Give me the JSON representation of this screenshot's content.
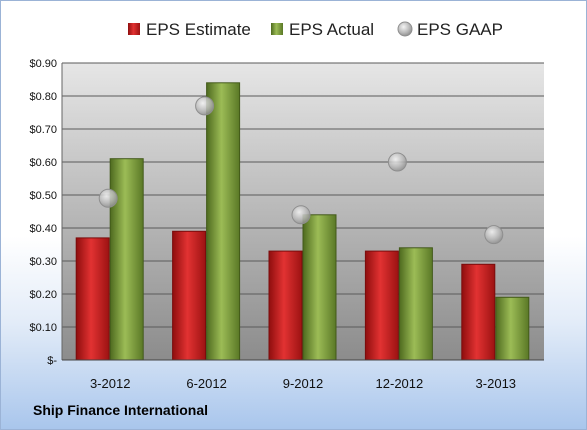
{
  "company": "Ship Finance International",
  "chart_data": {
    "type": "bar",
    "categories": [
      "3-2012",
      "6-2012",
      "9-2012",
      "12-2012",
      "3-2013"
    ],
    "series": [
      {
        "name": "EPS Estimate",
        "type": "bar",
        "color": "#cc1f1f",
        "values": [
          0.37,
          0.39,
          0.33,
          0.33,
          0.29
        ]
      },
      {
        "name": "EPS Actual",
        "type": "bar",
        "color": "#7a9a3a",
        "values": [
          0.61,
          0.84,
          0.44,
          0.34,
          0.19
        ]
      },
      {
        "name": "EPS GAAP",
        "type": "scatter",
        "color": "#b8b8b8",
        "values": [
          0.49,
          0.77,
          0.44,
          0.6,
          0.38
        ]
      }
    ],
    "ylim": [
      0,
      0.9
    ],
    "yticks": [
      0,
      0.1,
      0.2,
      0.3,
      0.4,
      0.5,
      0.6,
      0.7,
      0.8,
      0.9
    ],
    "ytick_labels": [
      "$-",
      "$0.10",
      "$0.20",
      "$0.30",
      "$0.40",
      "$0.50",
      "$0.60",
      "$0.70",
      "$0.80",
      "$0.90"
    ],
    "grid": true,
    "legend": "top"
  }
}
